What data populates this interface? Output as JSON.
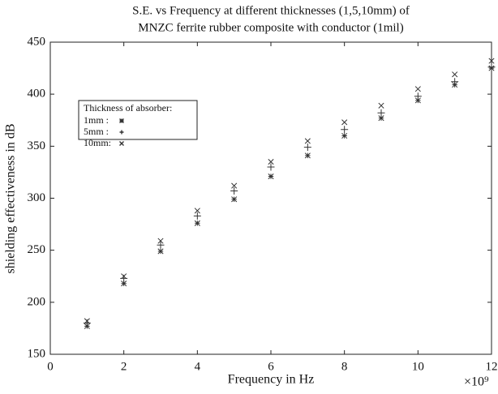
{
  "chart_data": {
    "type": "scatter",
    "title": [
      "S.E. vs Frequency at different thicknesses (1,5,10mm) of",
      "MNZC ferrite rubber composite with conductor (1mil)"
    ],
    "x_label": "Frequency in Hz",
    "y_label": "shielding effectiveness in dB",
    "x_scale_label": "×10⁹",
    "legend_title": "Thickness of absorber:",
    "x": [
      1,
      2,
      3,
      4,
      5,
      6,
      7,
      8,
      9,
      10,
      11,
      12
    ],
    "series": [
      {
        "name": "1mm  :",
        "marker": "*",
        "color": "#333333",
        "values": [
          177,
          218,
          249,
          276,
          299,
          321,
          341,
          360,
          377,
          394,
          409,
          425
        ]
      },
      {
        "name": "5mm  :",
        "marker": "+",
        "color": "#333333",
        "values": [
          180,
          223,
          255,
          283,
          307,
          330,
          349,
          366,
          382,
          398,
          412,
          426
        ]
      },
      {
        "name": "10mm:",
        "marker": "x",
        "color": "#333333",
        "values": [
          182,
          225,
          259,
          288,
          312,
          335,
          355,
          373,
          389,
          405,
          419,
          432
        ]
      }
    ],
    "xlim": [
      0,
      12
    ],
    "xticks": [
      0,
      2,
      4,
      6,
      8,
      10,
      12
    ],
    "ylim": [
      150,
      450
    ],
    "yticks": [
      150,
      200,
      250,
      300,
      350,
      400,
      450
    ],
    "grid": false,
    "legend": "upper left"
  }
}
